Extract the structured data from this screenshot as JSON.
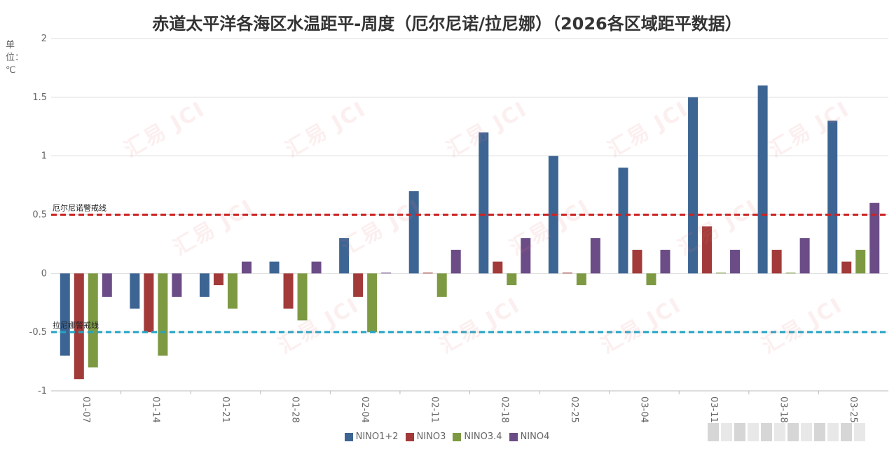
{
  "title": "赤道太平洋各海区水温距平-周度（厄尔尼诺/拉尼娜）（2026各区域距平数据）",
  "unit_label": "单位：℃",
  "chart_data": {
    "type": "bar",
    "categories": [
      "01-07",
      "01-14",
      "01-21",
      "01-28",
      "02-04",
      "02-11",
      "02-18",
      "02-25",
      "03-04",
      "03-11",
      "03-18",
      "03-25"
    ],
    "series": [
      {
        "name": "NINO1+2",
        "color": "#3d6594",
        "values": [
          -0.7,
          -0.3,
          -0.2,
          0.1,
          0.3,
          0.7,
          1.2,
          1.0,
          0.9,
          1.5,
          1.6,
          1.3
        ]
      },
      {
        "name": "NINO3",
        "color": "#a23a3a",
        "values": [
          -0.9,
          -0.5,
          -0.1,
          -0.3,
          -0.2,
          0.0,
          0.1,
          0.0,
          0.2,
          0.4,
          0.2,
          0.1
        ]
      },
      {
        "name": "NINO3.4",
        "color": "#7d9a43",
        "values": [
          -0.8,
          -0.7,
          -0.3,
          -0.4,
          -0.5,
          -0.2,
          -0.1,
          -0.1,
          -0.1,
          0.0,
          0.0,
          0.2
        ]
      },
      {
        "name": "NINO4",
        "color": "#6b4c86",
        "values": [
          -0.2,
          -0.2,
          0.1,
          0.1,
          0.0,
          0.2,
          0.3,
          0.3,
          0.2,
          0.2,
          0.3,
          0.6
        ]
      }
    ],
    "ylim": [
      -1,
      2
    ],
    "yticks": [
      "2",
      "1.5",
      "1",
      "0.5",
      "0",
      "-0.5",
      "-1"
    ],
    "ytick_values": [
      2,
      1.5,
      1,
      0.5,
      0,
      -0.5,
      -1
    ],
    "grid": true,
    "legend_position": "bottom",
    "reference_lines": [
      {
        "label": "厄尔尼诺警戒线",
        "value": 0.5,
        "color": "#cc2222"
      },
      {
        "label": "拉尼娜警戒线",
        "value": -0.5,
        "color": "#22a3c4"
      }
    ]
  },
  "watermark_text": "汇易 JCI"
}
